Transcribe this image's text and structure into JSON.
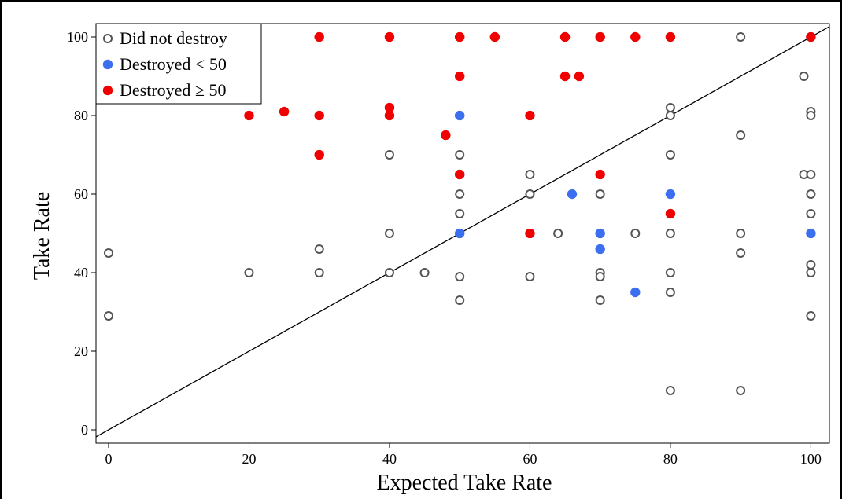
{
  "chart_data": {
    "type": "scatter",
    "title": "",
    "xlabel": "Expected Take Rate",
    "ylabel": "Take Rate",
    "xlim": [
      -2,
      103
    ],
    "ylim": [
      -2,
      103
    ],
    "x_ticks": [
      "0",
      "20",
      "40",
      "60",
      "80",
      "100"
    ],
    "y_ticks": [
      "0",
      "20",
      "40",
      "60",
      "80",
      "100"
    ],
    "grid": false,
    "legend_position": "top-left",
    "reference_line": "y = x",
    "series": [
      {
        "name": "Did not destroy",
        "marker": "open-circle",
        "color": "#555555",
        "points": [
          [
            0,
            45
          ],
          [
            0,
            29
          ],
          [
            20,
            40
          ],
          [
            30,
            46
          ],
          [
            30,
            40
          ],
          [
            40,
            70
          ],
          [
            40,
            50
          ],
          [
            40,
            40
          ],
          [
            45,
            40
          ],
          [
            50,
            100
          ],
          [
            50,
            80
          ],
          [
            50,
            70
          ],
          [
            50,
            65
          ],
          [
            50,
            60
          ],
          [
            50,
            55
          ],
          [
            50,
            50
          ],
          [
            50,
            39
          ],
          [
            50,
            33
          ],
          [
            60,
            65
          ],
          [
            60,
            60
          ],
          [
            60,
            50
          ],
          [
            60,
            39
          ],
          [
            64,
            50
          ],
          [
            70,
            60
          ],
          [
            70,
            50
          ],
          [
            70,
            40
          ],
          [
            70,
            39
          ],
          [
            70,
            33
          ],
          [
            75,
            50
          ],
          [
            80,
            82
          ],
          [
            80,
            80
          ],
          [
            80,
            70
          ],
          [
            80,
            50
          ],
          [
            80,
            40
          ],
          [
            80,
            35
          ],
          [
            80,
            10
          ],
          [
            90,
            100
          ],
          [
            90,
            75
          ],
          [
            90,
            50
          ],
          [
            90,
            45
          ],
          [
            90,
            10
          ],
          [
            99,
            90
          ],
          [
            99,
            65
          ],
          [
            100,
            100
          ],
          [
            100,
            81
          ],
          [
            100,
            80
          ],
          [
            100,
            65
          ],
          [
            100,
            60
          ],
          [
            100,
            55
          ],
          [
            100,
            50
          ],
          [
            100,
            42
          ],
          [
            100,
            40
          ],
          [
            100,
            29
          ]
        ]
      },
      {
        "name": "Destroyed < 50",
        "marker": "filled-circle",
        "color": "#3b6ff0",
        "points": [
          [
            50,
            80
          ],
          [
            50,
            65
          ],
          [
            50,
            50
          ],
          [
            66,
            60
          ],
          [
            70,
            50
          ],
          [
            70,
            46
          ],
          [
            75,
            35
          ],
          [
            80,
            60
          ],
          [
            100,
            50
          ]
        ]
      },
      {
        "name": "Destroyed ≥ 50",
        "marker": "filled-circle",
        "color": "#f00000",
        "points": [
          [
            20,
            80
          ],
          [
            25,
            81
          ],
          [
            30,
            100
          ],
          [
            30,
            80
          ],
          [
            30,
            70
          ],
          [
            40,
            100
          ],
          [
            40,
            82
          ],
          [
            40,
            80
          ],
          [
            48,
            75
          ],
          [
            50,
            100
          ],
          [
            50,
            90
          ],
          [
            50,
            65
          ],
          [
            55,
            100
          ],
          [
            60,
            80
          ],
          [
            60,
            50
          ],
          [
            65,
            100
          ],
          [
            65,
            90
          ],
          [
            67,
            90
          ],
          [
            70,
            100
          ],
          [
            70,
            65
          ],
          [
            75,
            100
          ],
          [
            80,
            100
          ],
          [
            80,
            55
          ],
          [
            100,
            100
          ]
        ]
      }
    ]
  }
}
